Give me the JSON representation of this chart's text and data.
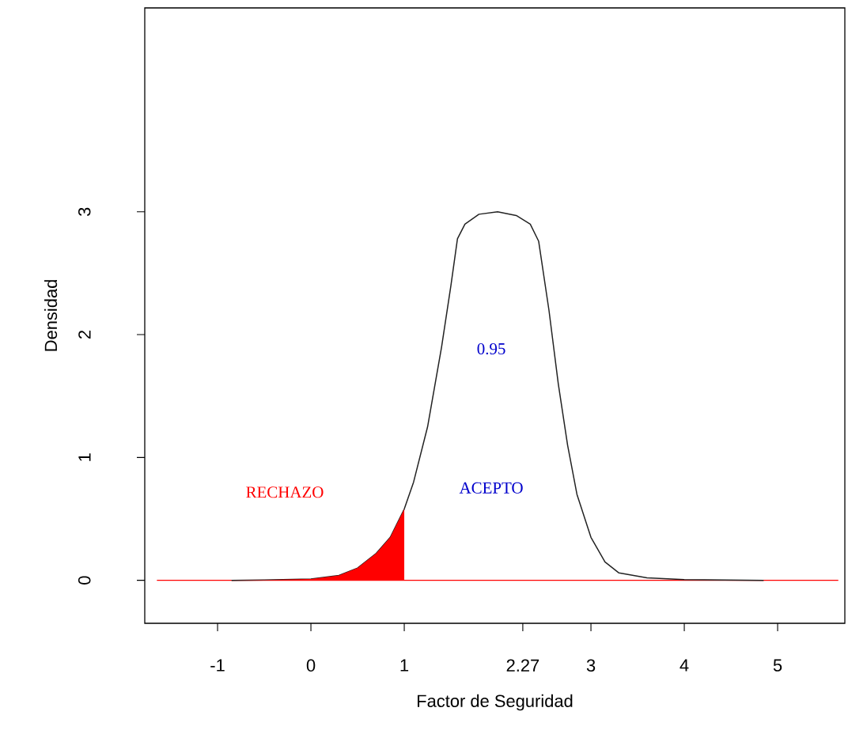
{
  "chart_data": {
    "type": "line",
    "xlabel": "Factor de Seguridad",
    "ylabel": "Densidad",
    "xlim": [
      -1.78,
      5.72
    ],
    "ylim": [
      -0.35,
      4.66
    ],
    "xticks": [
      -1,
      0,
      1,
      2.27,
      3,
      4,
      5
    ],
    "yticks": [
      0,
      1,
      2,
      3
    ],
    "grid": false,
    "marker": "none",
    "line_style": "solid",
    "series": [
      {
        "color": "#222222",
        "x": [
          -0.85,
          -0.5,
          0,
          0.3,
          0.5,
          0.7,
          0.85,
          1.0,
          1.1,
          1.25,
          1.4,
          1.5,
          1.57,
          1.65,
          1.8,
          2.0,
          2.2,
          2.35,
          2.44,
          2.55,
          2.65,
          2.75,
          2.85,
          3.0,
          3.15,
          3.3,
          3.6,
          4.0,
          4.85
        ],
        "values": [
          0,
          0.003,
          0.01,
          0.04,
          0.1,
          0.22,
          0.35,
          0.58,
          0.8,
          1.25,
          1.9,
          2.4,
          2.78,
          2.9,
          2.98,
          3.0,
          2.97,
          2.9,
          2.76,
          2.2,
          1.6,
          1.1,
          0.7,
          0.35,
          0.15,
          0.06,
          0.02,
          0.005,
          0
        ]
      },
      {
        "type": "area",
        "color": "#ff0000",
        "x": [
          -0.85,
          -0.5,
          0,
          0.3,
          0.5,
          0.7,
          0.85,
          1.0
        ],
        "values": [
          0,
          0.003,
          0.01,
          0.04,
          0.1,
          0.22,
          0.35,
          0.58
        ]
      }
    ],
    "ref_lines": [
      {
        "axis": "y",
        "value": 0,
        "color": "#ff0000"
      }
    ],
    "annotations": [
      "RECHAZO",
      "ACEPTO",
      "0.95"
    ]
  }
}
